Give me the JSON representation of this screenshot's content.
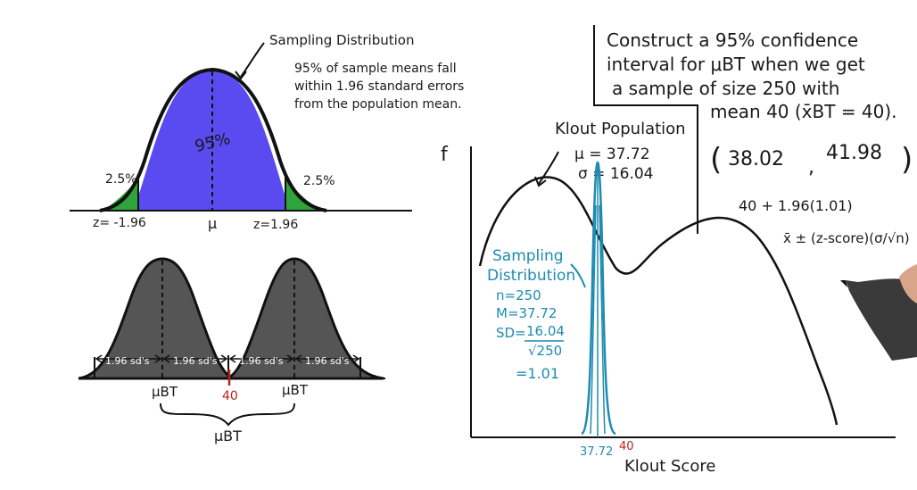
{
  "top_curve": {
    "title": "Sampling Distribution",
    "note_line1": "95% of sample means fall",
    "note_line2": "within 1.96 standard errors",
    "note_line3": "from the population mean.",
    "center_pct": "95%",
    "left_tail": "2.5%",
    "right_tail": "2.5%",
    "z_left": "z= -1.96",
    "mu": "μ",
    "z_right": "z=1.96",
    "fill_color": "#5a4bf0",
    "tail_color": "#2ea43a"
  },
  "bottom_curves": {
    "sd_labels": [
      "1.96 sd's",
      "1.96 sd's",
      "1.96 sd's",
      "1.96 sd's"
    ],
    "mu_left": "μBT",
    "marker": "40",
    "mu_right": "μBT",
    "brace_label": "μBT",
    "fill_color": "#555555"
  },
  "problem": {
    "line1": "Construct a 95% confidence",
    "line2": "interval for μBT when we get",
    "line3": "a sample of size 250 with",
    "line4": "mean 40 (x̄BT = 40).",
    "interval_open": "(",
    "interval_low": "38.02",
    "interval_sep": ",",
    "interval_high": "41.98",
    "interval_close": ")",
    "calc": "40 + 1.96(1.01)",
    "formula": "x̄ ± (z-score)(σ/√n)"
  },
  "main_chart": {
    "f_label": "f",
    "pop_title": "Klout Population",
    "pop_mu": "μ = 37.72",
    "pop_sigma": "σ = 16.04",
    "samp_title1": "Sampling",
    "samp_title2": "Distribution",
    "samp_n": "n=250",
    "samp_m": "M=37.72",
    "samp_sd_label": "SD=",
    "samp_sd_num": "16.04",
    "samp_sd_den": "√250",
    "samp_result": "=1.01",
    "x_tick_mean": "37.72",
    "x_tick_40": "40",
    "x_label": "Klout Score",
    "curve_color": "#1e8bb0"
  }
}
